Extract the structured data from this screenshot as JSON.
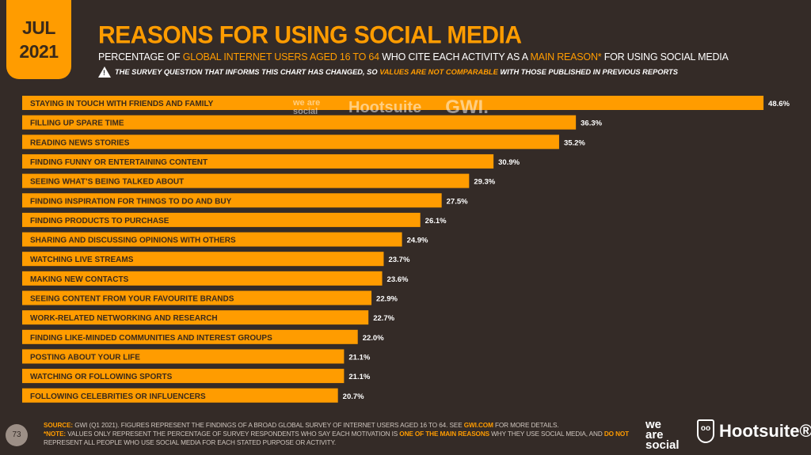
{
  "header": {
    "month": "JUL",
    "year": "2021",
    "title": "REASONS FOR USING SOCIAL MEDIA",
    "subtitle_parts": [
      "PERCENTAGE OF ",
      "GLOBAL INTERNET USERS AGED 16 TO 64",
      " WHO CITE EACH ACTIVITY AS A ",
      "MAIN REASON*",
      " FOR USING SOCIAL MEDIA"
    ],
    "warning_parts": [
      "THE SURVEY QUESTION THAT INFORMS THIS CHART HAS CHANGED, SO ",
      "VALUES ARE NOT COMPARABLE",
      " WITH THOSE PUBLISHED IN PREVIOUS REPORTS"
    ]
  },
  "chart_data": {
    "type": "bar",
    "orientation": "horizontal",
    "title": "REASONS FOR USING SOCIAL MEDIA",
    "unit": "%",
    "categories": [
      "STAYING IN TOUCH WITH FRIENDS AND FAMILY",
      "FILLING UP SPARE TIME",
      "READING NEWS STORIES",
      "FINDING FUNNY OR ENTERTAINING CONTENT",
      "SEEING WHAT’S BEING TALKED ABOUT",
      "FINDING INSPIRATION FOR THINGS TO DO AND BUY",
      "FINDING PRODUCTS TO PURCHASE",
      "SHARING AND DISCUSSING OPINIONS WITH OTHERS",
      "WATCHING LIVE STREAMS",
      "MAKING NEW CONTACTS",
      "SEEING CONTENT FROM YOUR FAVOURITE BRANDS",
      "WORK-RELATED NETWORKING AND RESEARCH",
      "FINDING LIKE-MINDED COMMUNITIES AND INTEREST GROUPS",
      "POSTING ABOUT YOUR LIFE",
      "WATCHING OR FOLLOWING SPORTS",
      "FOLLOWING CELEBRITIES OR INFLUENCERS"
    ],
    "values": [
      48.6,
      36.3,
      35.2,
      30.9,
      29.3,
      27.5,
      26.1,
      24.9,
      23.7,
      23.6,
      22.9,
      22.7,
      22.0,
      21.1,
      21.1,
      20.7
    ],
    "labels": [
      "48.6%",
      "36.3%",
      "35.2%",
      "30.9%",
      "29.3%",
      "27.5%",
      "26.1%",
      "24.9%",
      "23.7%",
      "23.6%",
      "22.9%",
      "22.7%",
      "22.0%",
      "21.1%",
      "21.1%",
      "20.7%"
    ],
    "bar_color": "#ff9c00"
  },
  "watermark": {
    "a": "we are social",
    "b": "Hootsuite",
    "c": "GWI."
  },
  "footer": {
    "page": "73",
    "source_label": "SOURCE:",
    "source": " GWI (Q1 2021). FIGURES REPRESENT THE FINDINGS OF A BROAD GLOBAL SURVEY OF INTERNET USERS AGED 16 TO 64. SEE ",
    "source_link": "GWI.COM",
    "source_end": " FOR MORE DETAILS.",
    "note_label": "*NOTE:",
    "note1": " VALUES ONLY REPRESENT THE PERCENTAGE OF SURVEY RESPONDENTS WHO SAY EACH MOTIVATION IS ",
    "note_hl1": "ONE OF THE MAIN REASONS",
    "note2": " WHY THEY USE SOCIAL MEDIA, AND ",
    "note_hl2": "DO NOT",
    "note3": " REPRESENT ALL PEOPLE WHO USE SOCIAL MEDIA FOR EACH STATED PURPOSE OR ACTIVITY.",
    "logo_was": [
      "we",
      "are",
      "social"
    ],
    "logo_hs": "Hootsuite®"
  }
}
